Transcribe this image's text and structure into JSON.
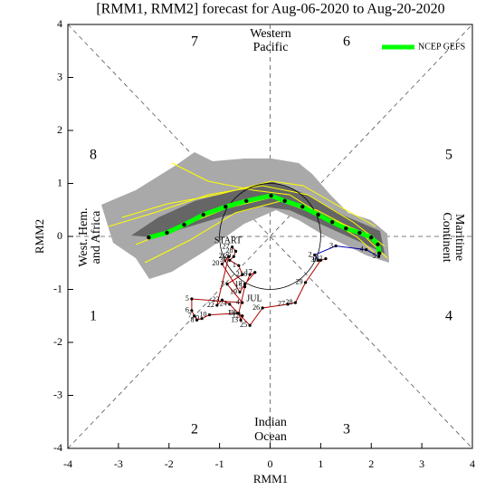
{
  "chart_data": {
    "type": "scatter",
    "title": "[RMM1, RMM2] forecast for Aug-06-2020 to Aug-20-2020",
    "x_label": "RMM1",
    "y_label": "RMM2",
    "xlim": [
      -4,
      4
    ],
    "ylim": [
      -4,
      4
    ],
    "xticks": [
      -4,
      -3,
      -2,
      -1,
      0,
      1,
      2,
      3,
      4
    ],
    "yticks": [
      -4,
      -3,
      -2,
      -1,
      0,
      1,
      2,
      3,
      4
    ],
    "legend": "top-right",
    "phases": [
      "1",
      "2",
      "3",
      "4",
      "5",
      "6",
      "7",
      "8"
    ],
    "regions": [
      [
        "Western",
        "Pacific"
      ],
      [
        "Maritime",
        "Continent"
      ],
      [
        "Indian",
        "Ocean"
      ],
      [
        "West. Hem.",
        "and Africa"
      ]
    ],
    "annotations": [
      "START",
      "JUL"
    ],
    "series": [
      {
        "name": "NCEP GEFS",
        "color": "#00ff00",
        "x": [
          -2.4,
          -2.04,
          -1.7,
          -1.32,
          -0.88,
          -0.47,
          0.02,
          0.29,
          0.64,
          0.95,
          1.23,
          1.5,
          1.77,
          2.0,
          2.13,
          2.16
        ],
        "values": [
          -0.02,
          0.07,
          0.22,
          0.41,
          0.56,
          0.67,
          0.77,
          0.67,
          0.56,
          0.41,
          0.27,
          0.15,
          0.07,
          -0.02,
          -0.15,
          -0.32
        ]
      },
      {
        "color": "#b00000",
        "labels": [
          "27",
          "28",
          "29",
          "30",
          "1",
          "2",
          "3",
          "4",
          "5",
          "6",
          "7",
          "8",
          "9",
          "10",
          "11",
          "12",
          "13",
          "14",
          "15",
          "16",
          "17",
          "18",
          "19",
          "20",
          "21",
          "22",
          "23",
          "24",
          "25",
          "26",
          "27",
          "28",
          "29",
          "30",
          "31"
        ],
        "x": [
          -0.75,
          -0.68,
          -0.72,
          -0.8,
          -0.62,
          -0.55,
          -0.85,
          -0.55,
          -1.55,
          -1.55,
          -1.5,
          -1.45,
          -1.35,
          -1.2,
          -0.65,
          -0.55,
          -0.58,
          -0.62,
          -0.5,
          -0.4,
          -0.3,
          -0.5,
          -0.6,
          -0.95,
          -0.82,
          -1.05,
          -0.95,
          -0.8,
          -0.4,
          -0.15,
          0.35,
          0.5,
          0.7,
          1.0,
          1.1
        ],
        "values": [
          -0.2,
          -0.28,
          -0.38,
          -0.45,
          -0.55,
          -0.72,
          -0.9,
          -1.25,
          -1.18,
          -1.4,
          -1.5,
          -1.58,
          -1.55,
          -1.48,
          -1.45,
          -1.5,
          -1.58,
          -1.45,
          -0.95,
          -0.72,
          -0.68,
          -0.9,
          -1.05,
          -0.52,
          -0.38,
          -1.3,
          -1.2,
          -1.28,
          -1.68,
          -1.35,
          -1.28,
          -1.25,
          -0.87,
          -0.45,
          -0.42
        ]
      },
      {
        "color": "#0000b0",
        "labels": [
          "1",
          "2",
          "3",
          "4",
          "5"
        ],
        "x": [
          0.95,
          0.88,
          1.3,
          1.9,
          2.15
        ],
        "values": [
          -0.45,
          -0.35,
          -0.18,
          -0.25,
          -0.38
        ]
      }
    ]
  }
}
